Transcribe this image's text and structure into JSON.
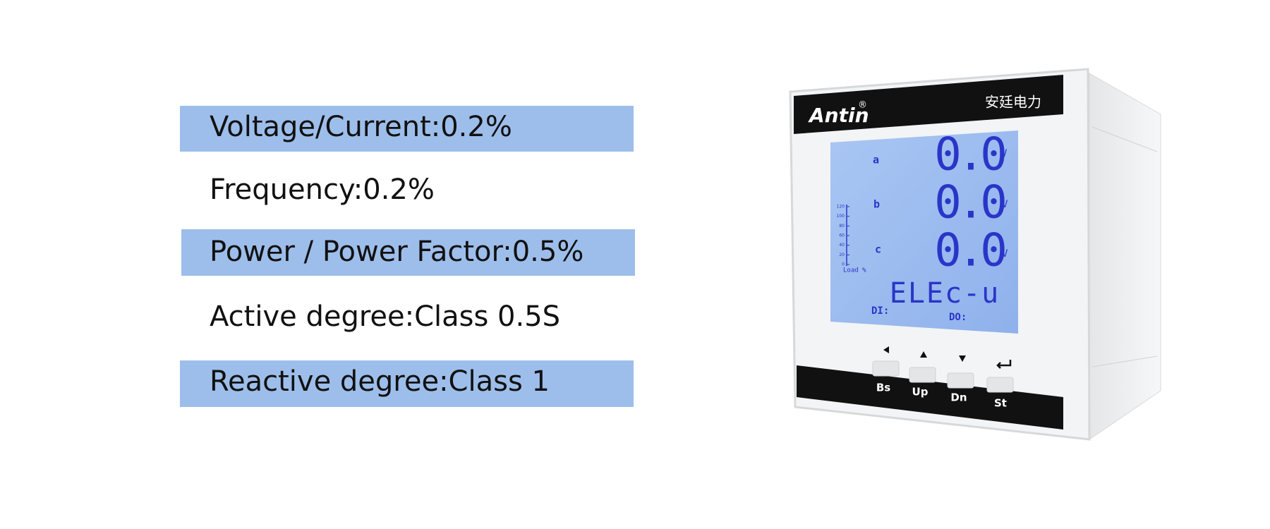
{
  "specs": [
    "Voltage/Current:0.2%",
    "Frequency:0.2%",
    "Power / Power Factor:0.5%",
    "Active degree:Class 0.5S",
    "Reactive degree:Class 1"
  ],
  "device": {
    "brand": "Antin",
    "registered": "®",
    "company": "安廷电力",
    "lcd": {
      "rows": [
        {
          "phase": "a",
          "reading": "0.0",
          "unit": "V"
        },
        {
          "phase": "b",
          "reading": "0.0",
          "unit": "V"
        },
        {
          "phase": "c",
          "reading": "0.0",
          "unit": "V"
        }
      ],
      "mode": "ELEc-u",
      "di": "DI:",
      "do": "DO:",
      "load_label": "Load %",
      "load_scale": [
        120,
        100,
        80,
        60,
        40,
        20,
        0
      ]
    },
    "buttons": [
      "Bs",
      "Up",
      "Dn",
      "St"
    ]
  }
}
